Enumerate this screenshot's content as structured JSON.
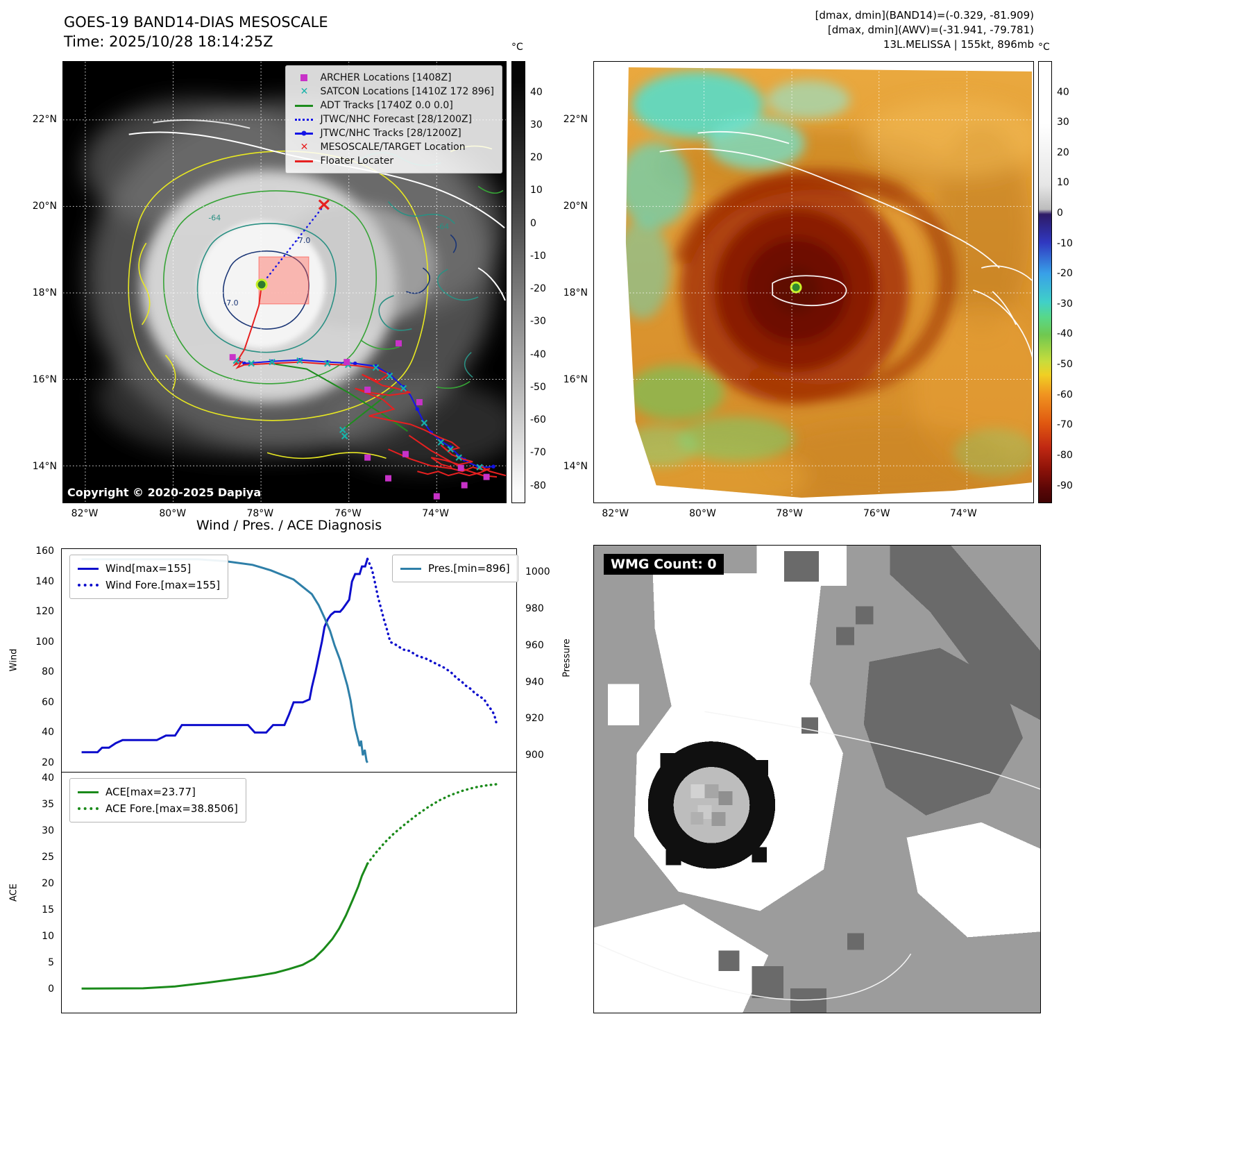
{
  "band14_panel": {
    "title": "GOES-19 BAND14-DIAS MESOSCALE",
    "time_line": "Time: 2025/10/28 18:14:25Z",
    "copyright": "Copyright © 2020-2025 Dapiya",
    "contour_labels": [
      "-64",
      "-64",
      "-7.0",
      "-7.0"
    ],
    "colorbar": {
      "unit": "°C",
      "ticks": [
        40,
        30,
        20,
        10,
        0,
        -10,
        -20,
        -30,
        -40,
        -50,
        -60,
        -70,
        -80
      ]
    },
    "lat_ticks": [
      "22°N",
      "20°N",
      "18°N",
      "16°N",
      "14°N"
    ],
    "lon_ticks": [
      "82°W",
      "80°W",
      "78°W",
      "76°W",
      "74°W"
    ],
    "legend": [
      {
        "label": "ARCHER Locations [1408Z]",
        "marker": "square",
        "color": "#c832c8"
      },
      {
        "label": "SATCON Locations [1410Z 172 896]",
        "marker": "x",
        "color": "#18b2a8"
      },
      {
        "label": "ADT Tracks [1740Z 0.0 0.0]",
        "marker": "line",
        "color": "#1e8c1e"
      },
      {
        "label": "JTWC/NHC Forecast [28/1200Z]",
        "marker": "dotted-line",
        "color": "#1414e6"
      },
      {
        "label": "JTWC/NHC Tracks [28/1200Z]",
        "marker": "line-dot",
        "color": "#1414e6"
      },
      {
        "label": "MESOSCALE/TARGET Location",
        "marker": "x",
        "color": "#e62020"
      },
      {
        "label": "Floater Locater",
        "marker": "line",
        "color": "#e62020"
      }
    ]
  },
  "awv_panel": {
    "header_lines": [
      "[dmax, dmin](BAND14)=(-0.329, -81.909)",
      "[dmax, dmin](AWV)=(-31.941, -79.781)",
      "13L.MELISSA | 155kt, 896mb"
    ],
    "colorbar": {
      "unit": "°C",
      "ticks": [
        40,
        30,
        20,
        10,
        0,
        -10,
        -20,
        -30,
        -40,
        -50,
        -60,
        -70,
        -80,
        -90
      ]
    },
    "lat_ticks": [
      "22°N",
      "20°N",
      "18°N",
      "16°N",
      "14°N"
    ],
    "lon_ticks": [
      "82°W",
      "80°W",
      "78°W",
      "76°W",
      "74°W"
    ]
  },
  "wmg_panel": {
    "count_label": "WMG Count: 0"
  },
  "chart_data": [
    {
      "type": "line",
      "title": "Wind / Pres. / ACE Diagnosis",
      "ylabel": "Wind",
      "ylabel_right": "Pressure",
      "ylim": [
        14,
        162
      ],
      "ylim_right": [
        891,
        1013
      ],
      "yticks": [
        160,
        140,
        120,
        100,
        80,
        60,
        40,
        20
      ],
      "yticks_right": [
        1000,
        980,
        960,
        940,
        920,
        900
      ],
      "grid": false,
      "legend_position": [
        "upper left",
        "upper right"
      ],
      "series": [
        {
          "name": "Wind[max=155]",
          "color": "#0d0dcc",
          "style": "solid",
          "axis": "left",
          "x": [
            0.045,
            0.08,
            0.09,
            0.105,
            0.12,
            0.135,
            0.21,
            0.23,
            0.25,
            0.265,
            0.36,
            0.41,
            0.425,
            0.45,
            0.465,
            0.49,
            0.5,
            0.51,
            0.53,
            0.545,
            0.55,
            0.558,
            0.565,
            0.572,
            0.578,
            0.585,
            0.592,
            0.6,
            0.612,
            0.618,
            0.625,
            0.632,
            0.638,
            0.645,
            0.655,
            0.66,
            0.667,
            0.672
          ],
          "values": [
            27,
            27,
            30,
            30,
            33,
            35,
            35,
            38,
            38,
            45,
            45,
            45,
            40,
            40,
            45,
            45,
            52,
            60,
            60,
            62,
            70,
            80,
            90,
            100,
            110,
            115,
            118,
            120,
            120,
            122,
            125,
            128,
            140,
            145,
            145,
            150,
            150,
            155
          ]
        },
        {
          "name": "Wind Fore.[max=155]",
          "color": "#0d0dcc",
          "style": "dotted",
          "axis": "left",
          "x": [
            0.672,
            0.682,
            0.688,
            0.695,
            0.702,
            0.708,
            0.715,
            0.722,
            0.735,
            0.75,
            0.765,
            0.78,
            0.8,
            0.82,
            0.84,
            0.855,
            0.868,
            0.878,
            0.888,
            0.898,
            0.908,
            0.918,
            0.928,
            0.936,
            0.944,
            0.95,
            0.956
          ],
          "values": [
            155,
            148,
            140,
            130,
            122,
            115,
            108,
            100,
            98,
            95,
            94,
            91,
            89,
            86,
            83,
            80,
            76,
            74,
            71,
            69,
            66,
            64,
            62,
            58,
            55,
            52,
            45
          ]
        },
        {
          "name": "Pres.[min=896]",
          "color": "#2e7fa8",
          "style": "solid",
          "axis": "right",
          "x": [
            0.045,
            0.3,
            0.36,
            0.42,
            0.46,
            0.49,
            0.51,
            0.53,
            0.55,
            0.565,
            0.578,
            0.59,
            0.6,
            0.612,
            0.62,
            0.628,
            0.635,
            0.64,
            0.645,
            0.65,
            0.655,
            0.658,
            0.662,
            0.666,
            0.67,
            0.672
          ],
          "values": [
            1007,
            1007,
            1006,
            1004,
            1001,
            998,
            996,
            992,
            988,
            982,
            975,
            968,
            960,
            952,
            945,
            938,
            930,
            922,
            915,
            910,
            905,
            908,
            900,
            903,
            897,
            896
          ]
        }
      ]
    },
    {
      "type": "line",
      "ylabel": "ACE",
      "ylim": [
        -4.6,
        41.2
      ],
      "yticks": [
        40,
        35,
        30,
        25,
        20,
        15,
        10,
        5,
        0
      ],
      "grid": false,
      "legend_position": [
        "upper left"
      ],
      "series": [
        {
          "name": "ACE[max=23.77]",
          "color": "#1a8a1a",
          "style": "solid",
          "axis": "left",
          "x": [
            0.045,
            0.18,
            0.25,
            0.32,
            0.38,
            0.43,
            0.47,
            0.5,
            0.53,
            0.555,
            0.575,
            0.595,
            0.61,
            0.625,
            0.64,
            0.652,
            0.66,
            0.668,
            0.672
          ],
          "values": [
            0.1,
            0.15,
            0.5,
            1.2,
            1.9,
            2.5,
            3.1,
            3.8,
            4.6,
            5.8,
            7.5,
            9.5,
            11.5,
            14,
            17,
            19.5,
            21.5,
            23,
            23.77
          ]
        },
        {
          "name": "ACE Fore.[max=38.8506]",
          "color": "#1a8a1a",
          "style": "dotted",
          "axis": "left",
          "x": [
            0.672,
            0.69,
            0.71,
            0.73,
            0.755,
            0.78,
            0.805,
            0.83,
            0.855,
            0.88,
            0.905,
            0.93,
            0.955
          ],
          "values": [
            23.77,
            25.8,
            27.8,
            29.5,
            31.3,
            33,
            34.5,
            35.8,
            36.8,
            37.6,
            38.2,
            38.6,
            38.85
          ]
        }
      ]
    }
  ]
}
